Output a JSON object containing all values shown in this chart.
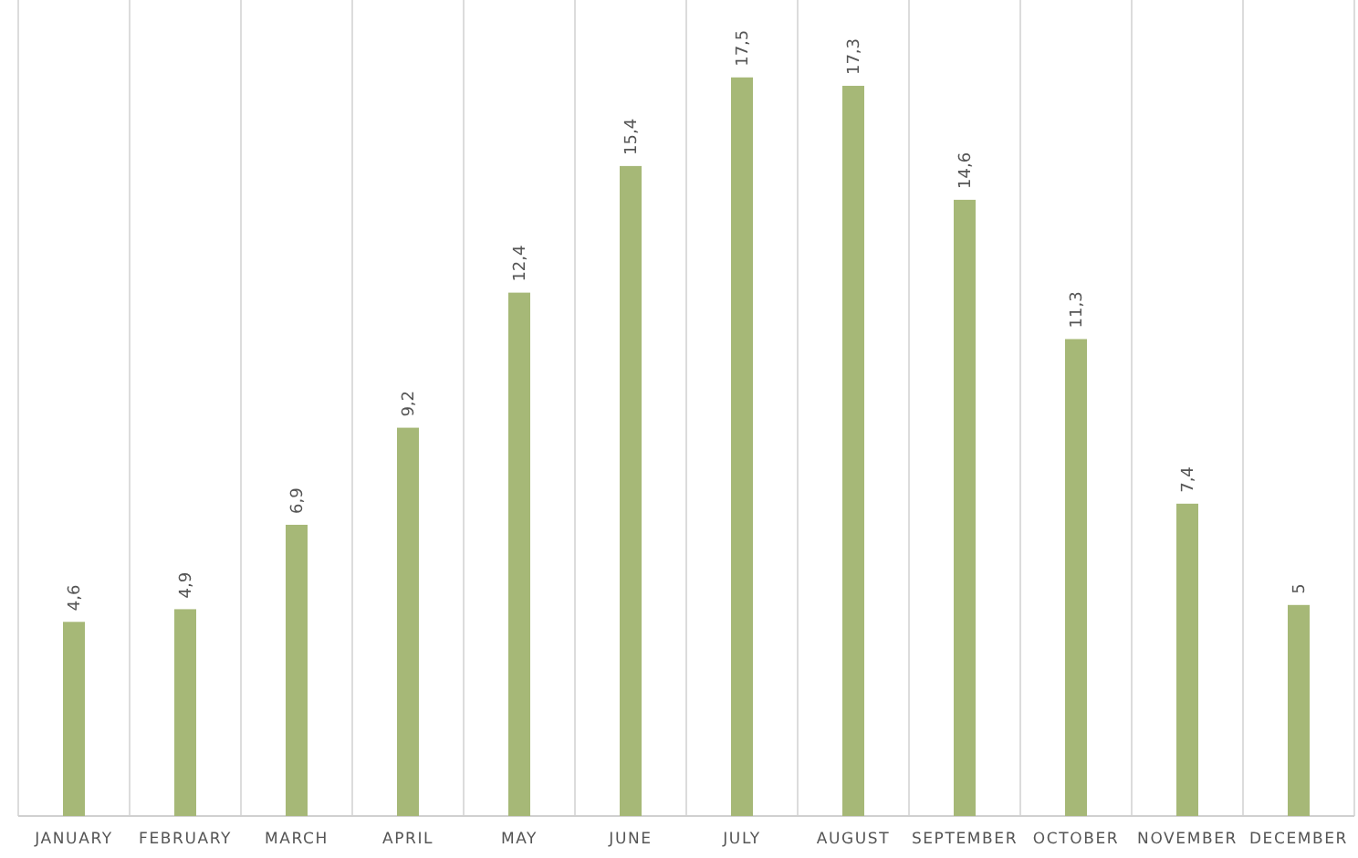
{
  "chart_data": {
    "type": "bar",
    "categories": [
      "JANUARY",
      "FEBRUARY",
      "MARCH",
      "APRIL",
      "MAY",
      "JUNE",
      "JULY",
      "AUGUST",
      "SEPTEMBER",
      "OCTOBER",
      "NOVEMBER",
      "DECEMBER"
    ],
    "values": [
      4.6,
      4.9,
      6.9,
      9.2,
      12.4,
      15.4,
      17.5,
      17.3,
      14.6,
      11.3,
      7.4,
      5
    ],
    "value_labels": [
      "4,6",
      "4,9",
      "6,9",
      "9,2",
      "12,4",
      "15,4",
      "17,5",
      "17,3",
      "14,6",
      "11,3",
      "7,4",
      "5"
    ],
    "color": "#a6b877",
    "grid": "x"
  }
}
